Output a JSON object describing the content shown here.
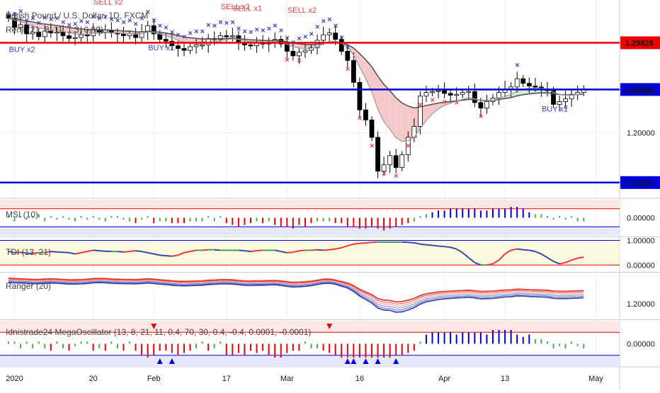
{
  "header": {
    "title": "British Pound / U.S. Dollar, 1D, FXCM",
    "overlay_label": "Renji (21, 8, 11, 1.3, 0.99)"
  },
  "colors": {
    "up": "#ffffff",
    "down": "#000000",
    "level": "#0000dd",
    "resist": "#ee0000",
    "cloud_red": "#f5c9c9",
    "cloud_green": "#d7efd5",
    "buy": "#4040c0",
    "sell": "#e04040"
  },
  "chart_data": [
    {
      "type": "candlestick",
      "title": "British Pound / U.S. Dollar, 1D, FXCM",
      "ylim": [
        1.13,
        1.345
      ],
      "x_ticks": [
        {
          "i": 1,
          "label": "2020"
        },
        {
          "i": 14,
          "label": "20"
        },
        {
          "i": 24,
          "label": "Feb"
        },
        {
          "i": 36,
          "label": "17"
        },
        {
          "i": 46,
          "label": "Mar"
        },
        {
          "i": 58,
          "label": "16"
        },
        {
          "i": 72,
          "label": "Apr"
        },
        {
          "i": 82,
          "label": "13"
        },
        {
          "i": 97,
          "label": "May"
        }
      ],
      "y_ticks": [
        1.2,
        1.24595
      ],
      "price_levels": [
        {
          "value": 1.29828,
          "label": "1.29828",
          "color": "#ee0000"
        },
        {
          "value": 1.24724,
          "label": "1.24724",
          "color": "#0000dd"
        },
        {
          "value": 1.14562,
          "label": "1.14562",
          "color": "#0000dd"
        }
      ],
      "close": [
        1.325,
        1.315,
        1.318,
        1.308,
        1.31,
        1.305,
        1.311,
        1.309,
        1.31,
        1.306,
        1.303,
        1.304,
        1.307,
        1.306,
        1.312,
        1.31,
        1.312,
        1.309,
        1.308,
        1.306,
        1.308,
        1.304,
        1.31,
        1.317,
        1.308,
        1.302,
        1.3,
        1.295,
        1.292,
        1.29,
        1.294,
        1.296,
        1.296,
        1.303,
        1.302,
        1.306,
        1.305,
        1.306,
        1.299,
        1.296,
        1.295,
        1.298,
        1.297,
        1.299,
        1.302,
        1.297,
        1.289,
        1.284,
        1.288,
        1.29,
        1.293,
        1.301,
        1.307,
        1.309,
        1.302,
        1.289,
        1.279,
        1.255,
        1.225,
        1.214,
        1.195,
        1.158,
        1.165,
        1.175,
        1.162,
        1.176,
        1.195,
        1.207,
        1.24,
        1.244,
        1.245,
        1.246,
        1.243,
        1.241,
        1.242,
        1.244,
        1.245,
        1.233,
        1.227,
        1.234,
        1.238,
        1.244,
        1.248,
        1.25,
        1.259,
        1.254,
        1.251,
        1.25,
        1.248,
        1.246,
        1.231,
        1.234,
        1.237,
        1.242,
        1.244,
        1.248
      ]
    },
    {
      "type": "bar",
      "title": "MSI (10)",
      "ylim": [
        -1,
        1
      ],
      "y_ticks": [
        0.0
      ],
      "values": [
        0.1,
        -0.2,
        0.1,
        -0.1,
        0.1,
        0.2,
        -0.2,
        0.1,
        -0.1,
        0.1,
        -0.1,
        -0.2,
        0.1,
        -0.1,
        0.1,
        -0.1,
        -0.2,
        0.1,
        0.1,
        -0.1,
        -0.2,
        -0.3,
        -0.1,
        0.1,
        -0.3,
        -0.2,
        -0.2,
        -0.3,
        -0.3,
        -0.3,
        -0.2,
        -0.2,
        -0.2,
        0.1,
        -0.2,
        0.1,
        -0.3,
        -0.4,
        -0.5,
        -0.4,
        -0.3,
        -0.2,
        -0.3,
        -0.2,
        -0.4,
        -0.5,
        -0.5,
        -0.6,
        -0.4,
        -0.5,
        -0.3,
        -0.2,
        -0.2,
        -0.2,
        -0.3,
        -0.3,
        -0.5,
        -0.5,
        -0.6,
        -0.6,
        -0.5,
        -0.6,
        -0.7,
        -0.6,
        -0.5,
        -0.4,
        -0.3,
        -0.2,
        0.1,
        0.2,
        0.3,
        0.4,
        0.4,
        0.5,
        0.5,
        0.5,
        0.5,
        0.5,
        0.4,
        0.4,
        0.5,
        0.5,
        0.5,
        0.6,
        0.6,
        0.5,
        0.3,
        0.2,
        0.2,
        0.1,
        -0.1,
        0.1,
        -0.1,
        0.1,
        -0.2,
        -0.2
      ]
    },
    {
      "type": "line",
      "title": "TDI (13, 21)",
      "ylim": [
        -0.25,
        1.1
      ],
      "y_ticks": [
        1.0,
        0.0
      ],
      "values": [
        0.55,
        0.5,
        0.52,
        0.48,
        0.47,
        0.5,
        0.5,
        0.55,
        0.53,
        0.52,
        0.5,
        0.45,
        0.5,
        0.55,
        0.6,
        0.58,
        0.56,
        0.55,
        0.55,
        0.53,
        0.55,
        0.58,
        0.55,
        0.5,
        0.45,
        0.4,
        0.38,
        0.36,
        0.4,
        0.5,
        0.55,
        0.6,
        0.6,
        0.62,
        0.62,
        0.6,
        0.6,
        0.6,
        0.6,
        0.58,
        0.55,
        0.58,
        0.6,
        0.6,
        0.6,
        0.55,
        0.5,
        0.52,
        0.58,
        0.6,
        0.6,
        0.62,
        0.6,
        0.62,
        0.65,
        0.7,
        0.78,
        0.85,
        0.88,
        0.9,
        0.92,
        0.93,
        0.93,
        0.93,
        0.93,
        0.93,
        0.92,
        0.9,
        0.85,
        0.82,
        0.8,
        0.77,
        0.75,
        0.72,
        0.65,
        0.5,
        0.3,
        0.1,
        0.0,
        0.0,
        0.05,
        0.2,
        0.45,
        0.6,
        0.65,
        0.62,
        0.6,
        0.55,
        0.45,
        0.3,
        0.15,
        0.05,
        0.1,
        0.2,
        0.28,
        0.32
      ]
    },
    {
      "type": "line",
      "title": "Ranger (20)",
      "ylim": [
        1.13,
        1.345
      ],
      "y_ticks": [
        1.2
      ],
      "series": [
        {
          "values": [
            1.31,
            1.308,
            1.307,
            1.306,
            1.304,
            1.304,
            1.306,
            1.307,
            1.306,
            1.304,
            1.302,
            1.302,
            1.303,
            1.305,
            1.308,
            1.309,
            1.308,
            1.306,
            1.305,
            1.304,
            1.304,
            1.303,
            1.305,
            1.307,
            1.305,
            1.302,
            1.3,
            1.297,
            1.295,
            1.294,
            1.295,
            1.296,
            1.297,
            1.3,
            1.301,
            1.303,
            1.303,
            1.302,
            1.299,
            1.297,
            1.296,
            1.297,
            1.297,
            1.298,
            1.299,
            1.296,
            1.292,
            1.289,
            1.29,
            1.292,
            1.295,
            1.3,
            1.305,
            1.306,
            1.301,
            1.293,
            1.285,
            1.27,
            1.25,
            1.235,
            1.22,
            1.198,
            1.19,
            1.188,
            1.18,
            1.182,
            1.19,
            1.2,
            1.215,
            1.225,
            1.23,
            1.235,
            1.238,
            1.24,
            1.242,
            1.243,
            1.245,
            1.242,
            1.238,
            1.239,
            1.24,
            1.243,
            1.246,
            1.247,
            1.251,
            1.25,
            1.248,
            1.247,
            1.246,
            1.245,
            1.24,
            1.239,
            1.239,
            1.24,
            1.241,
            1.243
          ]
        }
      ]
    },
    {
      "type": "bar",
      "title": "Idnistrade24 MegaOscillator (13, 8, 21, 11, 0.4, 70, 30, 0.4, -0.4, 0.0001, -0.0001)",
      "ylim": [
        -1,
        1
      ],
      "y_ticks": [
        0.0
      ],
      "values": [
        0.1,
        0.1,
        -0.2,
        0.1,
        -0.2,
        0.1,
        -0.2,
        -0.3,
        0.1,
        -0.2,
        -0.3,
        -0.1,
        0.1,
        0.1,
        -0.3,
        -0.2,
        -0.3,
        0.1,
        -0.2,
        -0.3,
        0.1,
        -0.3,
        -0.5,
        -0.6,
        -0.5,
        -0.3,
        -0.3,
        -0.4,
        -0.5,
        -0.4,
        -0.3,
        -0.2,
        0.1,
        -0.3,
        -0.2,
        0.1,
        -0.5,
        -0.5,
        -0.4,
        -0.5,
        -0.3,
        -0.4,
        -0.3,
        -0.5,
        -0.6,
        -0.6,
        -0.4,
        -0.3,
        -0.3,
        0.1,
        -0.2,
        -0.2,
        -0.3,
        -0.4,
        -0.5,
        -0.6,
        -0.6,
        -0.6,
        -0.6,
        -0.6,
        -0.6,
        -0.6,
        -0.6,
        -0.6,
        -0.5,
        -0.5,
        -0.4,
        -0.3,
        0.1,
        0.4,
        0.5,
        0.5,
        0.5,
        0.5,
        0.4,
        0.5,
        0.5,
        0.5,
        0.5,
        0.4,
        0.6,
        0.6,
        0.6,
        0.6,
        0.4,
        0.3,
        0.4,
        0.2,
        0.2,
        0.1,
        -0.2,
        -0.1,
        -0.2,
        0.1,
        -0.1,
        -0.2
      ]
    }
  ],
  "annotations": {
    "buy_labels": [
      {
        "i": 1,
        "text": "BUY x2",
        "value": 1.288
      },
      {
        "i": 24,
        "text": "BUY x1",
        "value": 1.29
      },
      {
        "i": 89,
        "text": "BUY x1",
        "value": 1.223
      }
    ],
    "sell_labels": [
      {
        "i": 15,
        "text": "SELL x2",
        "value": 1.34
      },
      {
        "i": 36,
        "text": "SELL x2",
        "value": 1.335
      },
      {
        "i": 38,
        "text": "SELL x1",
        "value": 1.333
      },
      {
        "i": 47,
        "text": "SELL x2",
        "value": 1.331
      }
    ]
  }
}
